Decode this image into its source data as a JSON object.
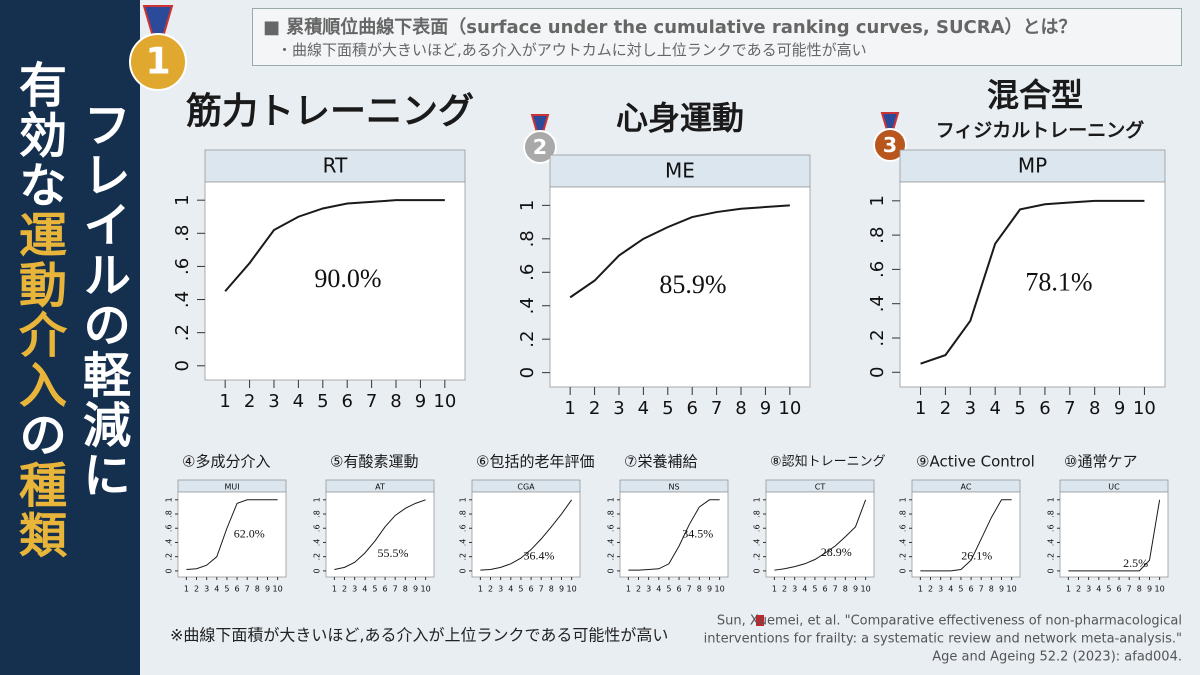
{
  "slide": {
    "title_line1": "フレイルの軽減に",
    "title_line2": [
      "有効な",
      "運動介入",
      "の",
      "種類"
    ],
    "definition_heading": "■ 累積順位曲線下表面（surface under the cumulative ranking curves, SUCRA）とは？",
    "definition_text": "・曲線下面積が大きいほど,ある介入がアウトカムに対し上位ランクである可能性が高い",
    "footnote": "※曲線下面積が大きいほど,ある介入が上位ランクである可能性が高い",
    "citation": [
      "Sun, Xuemei, et al. \"Comparative effectiveness of non-pharmacological",
      "interventions for frailty: a systematic review and network meta-analysis.\"",
      "Age and Ageing 52.2 (2023): afad004."
    ]
  },
  "chart_data": [
    {
      "type": "line",
      "label": "筋力トレーニング",
      "rank": 1,
      "title": "RT",
      "annotation": "90.0%",
      "x": [
        1,
        2,
        3,
        4,
        5,
        6,
        7,
        8,
        9,
        10
      ],
      "values": [
        0.45,
        0.62,
        0.82,
        0.9,
        0.95,
        0.98,
        0.99,
        1,
        1,
        1
      ],
      "color": "#1a1a1a",
      "xlim": [
        0.6,
        10.4
      ],
      "ylim": [
        -0.05,
        1.05
      ],
      "xticks": [
        1,
        2,
        3,
        4,
        5,
        6,
        7,
        8,
        9,
        10
      ],
      "yticks": [
        0,
        {
          "value": 0.2,
          "label": ".2"
        },
        {
          "value": 0.4,
          "label": ".4"
        },
        {
          "value": 0.6,
          "label": ".6"
        },
        {
          "value": 0.8,
          "label": ".8"
        },
        1
      ]
    },
    {
      "type": "line",
      "label": "心身運動",
      "rank": 2,
      "title": "ME",
      "annotation": "85.9%",
      "x": [
        1,
        2,
        3,
        4,
        5,
        6,
        7,
        8,
        9,
        10
      ],
      "values": [
        0.45,
        0.55,
        0.7,
        0.8,
        0.87,
        0.93,
        0.96,
        0.98,
        0.99,
        1
      ],
      "color": "#1a1a1a",
      "xlim": [
        0.6,
        10.4
      ],
      "ylim": [
        -0.05,
        1.05
      ],
      "xticks": [
        1,
        2,
        3,
        4,
        5,
        6,
        7,
        8,
        9,
        10
      ],
      "yticks": [
        0,
        {
          "value": 0.2,
          "label": ".2"
        },
        {
          "value": 0.4,
          "label": ".4"
        },
        {
          "value": 0.6,
          "label": ".6"
        },
        {
          "value": 0.8,
          "label": ".8"
        },
        1
      ]
    },
    {
      "type": "line",
      "label": "混合型",
      "sublabel": "フィジカルトレーニング",
      "rank": 3,
      "title": "MP",
      "annotation": "78.1%",
      "x": [
        1,
        2,
        3,
        4,
        5,
        6,
        7,
        8,
        9,
        10
      ],
      "values": [
        0.05,
        0.1,
        0.3,
        0.75,
        0.95,
        0.98,
        0.99,
        1,
        1,
        1
      ],
      "color": "#1a1a1a",
      "xlim": [
        0.6,
        10.4
      ],
      "ylim": [
        -0.05,
        1.05
      ],
      "xticks": [
        1,
        2,
        3,
        4,
        5,
        6,
        7,
        8,
        9,
        10
      ],
      "yticks": [
        0,
        {
          "value": 0.2,
          "label": ".2"
        },
        {
          "value": 0.4,
          "label": ".4"
        },
        {
          "value": 0.6,
          "label": ".6"
        },
        {
          "value": 0.8,
          "label": ".8"
        },
        1
      ]
    },
    {
      "type": "line",
      "label": "④多成分介入",
      "title": "MUI",
      "annotation": "62.0%",
      "x": [
        1,
        2,
        3,
        4,
        5,
        6,
        7,
        8,
        9,
        10
      ],
      "values": [
        0.02,
        0.03,
        0.08,
        0.2,
        0.6,
        0.95,
        1,
        1,
        1,
        1
      ],
      "color": "#1a1a1a",
      "xlim": [
        0.6,
        10.4
      ],
      "ylim": [
        -0.05,
        1.05
      ],
      "xticks": [
        1,
        2,
        3,
        4,
        5,
        6,
        7,
        8,
        9,
        10
      ],
      "yticks": [
        0,
        {
          "value": 0.2,
          "label": ".2"
        },
        {
          "value": 0.4,
          "label": ".4"
        },
        {
          "value": 0.6,
          "label": ".6"
        },
        {
          "value": 0.8,
          "label": ".8"
        },
        1
      ]
    },
    {
      "type": "line",
      "label": "⑤有酸素運動",
      "title": "AT",
      "annotation": "55.5%",
      "x": [
        1,
        2,
        3,
        4,
        5,
        6,
        7,
        8,
        9,
        10
      ],
      "values": [
        0.02,
        0.05,
        0.12,
        0.25,
        0.42,
        0.62,
        0.78,
        0.88,
        0.95,
        1
      ],
      "color": "#1a1a1a",
      "xlim": [
        0.6,
        10.4
      ],
      "ylim": [
        -0.05,
        1.05
      ],
      "xticks": [
        1,
        2,
        3,
        4,
        5,
        6,
        7,
        8,
        9,
        10
      ],
      "yticks": [
        0,
        {
          "value": 0.2,
          "label": ".2"
        },
        {
          "value": 0.4,
          "label": ".4"
        },
        {
          "value": 0.6,
          "label": ".6"
        },
        {
          "value": 0.8,
          "label": ".8"
        },
        1
      ]
    },
    {
      "type": "line",
      "label": "⑥包括的老年評価",
      "title": "CGA",
      "annotation": "36.4%",
      "x": [
        1,
        2,
        3,
        4,
        5,
        6,
        7,
        8,
        9,
        10
      ],
      "values": [
        0.01,
        0.02,
        0.05,
        0.1,
        0.18,
        0.3,
        0.45,
        0.62,
        0.8,
        1
      ],
      "color": "#1a1a1a",
      "xlim": [
        0.6,
        10.4
      ],
      "ylim": [
        -0.05,
        1.05
      ],
      "xticks": [
        1,
        2,
        3,
        4,
        5,
        6,
        7,
        8,
        9,
        10
      ],
      "yticks": [
        0,
        {
          "value": 0.2,
          "label": ".2"
        },
        {
          "value": 0.4,
          "label": ".4"
        },
        {
          "value": 0.6,
          "label": ".6"
        },
        {
          "value": 0.8,
          "label": ".8"
        },
        1
      ]
    },
    {
      "type": "line",
      "label": "⑦栄養補給",
      "title": "NS",
      "annotation": "34.5%",
      "x": [
        1,
        2,
        3,
        4,
        5,
        6,
        7,
        8,
        9,
        10
      ],
      "values": [
        0.01,
        0.01,
        0.02,
        0.03,
        0.1,
        0.35,
        0.65,
        0.9,
        1,
        1
      ],
      "color": "#1a1a1a",
      "xlim": [
        0.6,
        10.4
      ],
      "ylim": [
        -0.05,
        1.05
      ],
      "xticks": [
        1,
        2,
        3,
        4,
        5,
        6,
        7,
        8,
        9,
        10
      ],
      "yticks": [
        0,
        {
          "value": 0.2,
          "label": ".2"
        },
        {
          "value": 0.4,
          "label": ".4"
        },
        {
          "value": 0.6,
          "label": ".6"
        },
        {
          "value": 0.8,
          "label": ".8"
        },
        1
      ]
    },
    {
      "type": "line",
      "label": "⑧認知トレーニング",
      "title": "CT",
      "annotation": "28.9%",
      "x": [
        1,
        2,
        3,
        4,
        5,
        6,
        7,
        8,
        9,
        10
      ],
      "values": [
        0.01,
        0.03,
        0.06,
        0.1,
        0.16,
        0.25,
        0.35,
        0.48,
        0.62,
        1
      ],
      "color": "#1a1a1a",
      "xlim": [
        0.6,
        10.4
      ],
      "ylim": [
        -0.05,
        1.05
      ],
      "xticks": [
        1,
        2,
        3,
        4,
        5,
        6,
        7,
        8,
        9,
        10
      ],
      "yticks": [
        0,
        {
          "value": 0.2,
          "label": ".2"
        },
        {
          "value": 0.4,
          "label": ".4"
        },
        {
          "value": 0.6,
          "label": ".6"
        },
        {
          "value": 0.8,
          "label": ".8"
        },
        1
      ]
    },
    {
      "type": "line",
      "label": "⑨Active Control",
      "title": "AC",
      "annotation": "26.1%",
      "x": [
        1,
        2,
        3,
        4,
        5,
        6,
        7,
        8,
        9,
        10
      ],
      "values": [
        0,
        0,
        0,
        0,
        0.02,
        0.15,
        0.45,
        0.75,
        1,
        1
      ],
      "color": "#1a1a1a",
      "xlim": [
        0.6,
        10.4
      ],
      "ylim": [
        -0.05,
        1.05
      ],
      "xticks": [
        1,
        2,
        3,
        4,
        5,
        6,
        7,
        8,
        9,
        10
      ],
      "yticks": [
        0,
        {
          "value": 0.2,
          "label": ".2"
        },
        {
          "value": 0.4,
          "label": ".4"
        },
        {
          "value": 0.6,
          "label": ".6"
        },
        {
          "value": 0.8,
          "label": ".8"
        },
        1
      ]
    },
    {
      "type": "line",
      "label": "⑩通常ケア",
      "title": "UC",
      "annotation": "2.5%",
      "x": [
        1,
        2,
        3,
        4,
        5,
        6,
        7,
        8,
        9,
        10
      ],
      "values": [
        0,
        0,
        0,
        0,
        0,
        0,
        0,
        0,
        0.15,
        1
      ],
      "color": "#1a1a1a",
      "xlim": [
        0.6,
        10.4
      ],
      "ylim": [
        -0.05,
        1.05
      ],
      "xticks": [
        1,
        2,
        3,
        4,
        5,
        6,
        7,
        8,
        9,
        10
      ],
      "yticks": [
        0,
        {
          "value": 0.2,
          "label": ".2"
        },
        {
          "value": 0.4,
          "label": ".4"
        },
        {
          "value": 0.6,
          "label": ".6"
        },
        {
          "value": 0.8,
          "label": ".8"
        },
        1
      ]
    }
  ]
}
